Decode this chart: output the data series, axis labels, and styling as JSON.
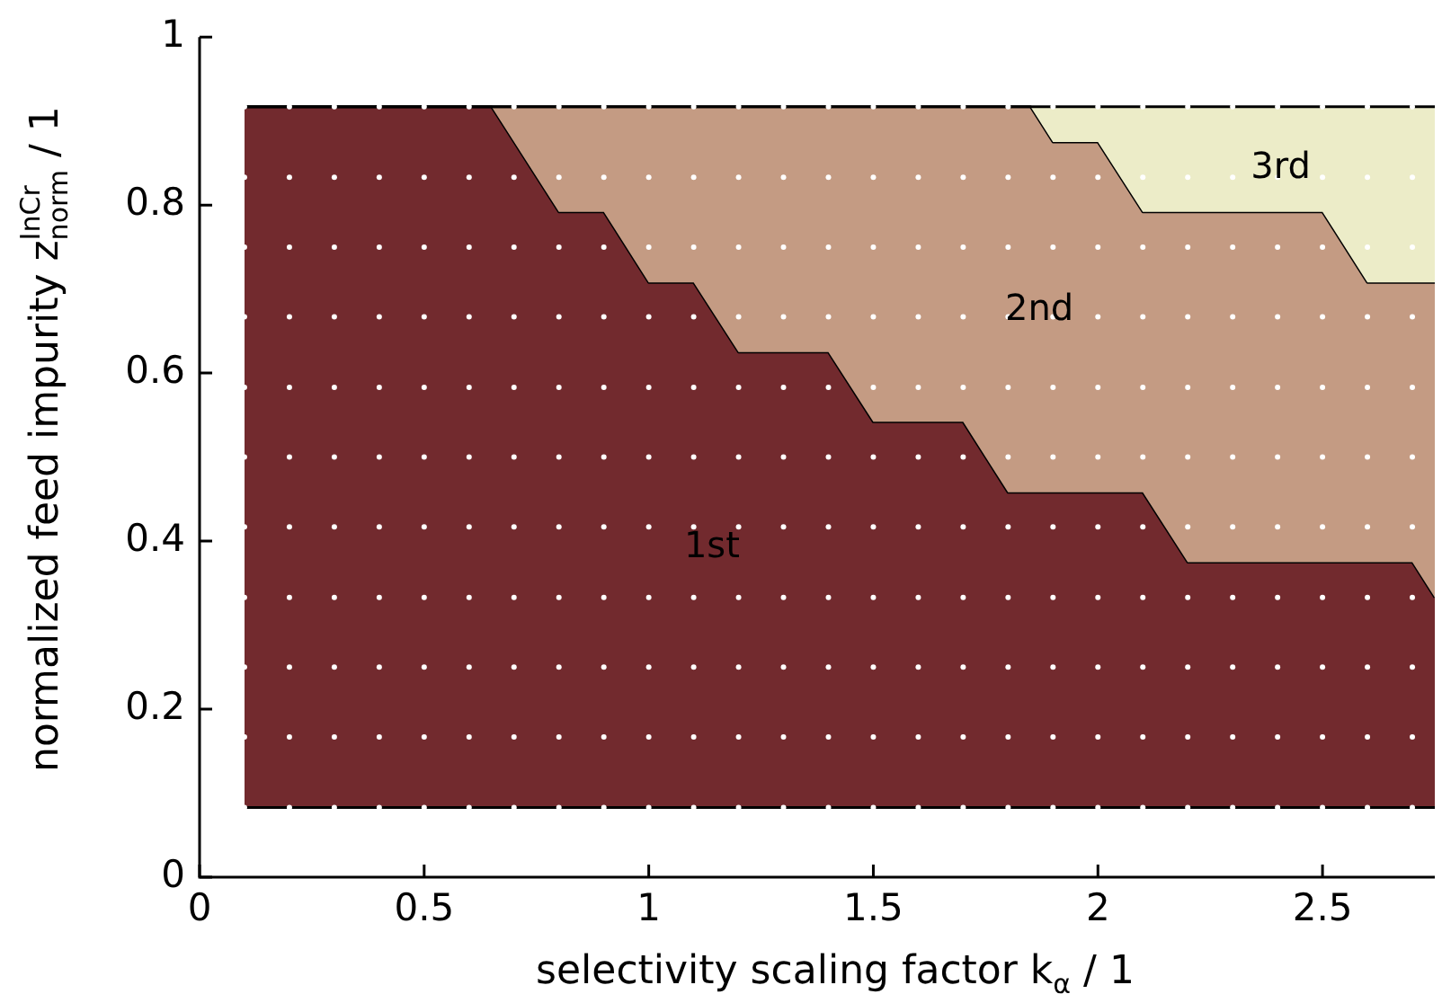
{
  "chart_data": {
    "type": "area",
    "xlabel": "selectivity scaling factor k$_{α}$ / 1",
    "ylabel": "normalized feed impurity z$_{norm}$$^{InCr}$ / 1",
    "xlim": [
      0,
      2.75
    ],
    "xticks": [
      0,
      0.5,
      1,
      1.5,
      2,
      2.5
    ],
    "ylim": [
      0,
      1
    ],
    "yticks": [
      0,
      0.2,
      0.4,
      0.6,
      0.8,
      1
    ],
    "grid": false,
    "legend": false,
    "annotations": [
      "1st",
      "2nd",
      "3rd"
    ],
    "x": [
      0.1,
      0.65,
      0.8,
      0.9,
      1.0,
      1.1,
      1.2,
      1.4,
      1.5,
      1.7,
      1.8,
      1.85,
      1.9,
      2.0,
      2.1,
      2.2,
      2.5,
      2.6,
      2.7,
      2.75
    ],
    "series": [
      {
        "type": "line",
        "color": "#000000",
        "values": [
          0.083,
          0.083,
          0.083,
          0.083,
          0.083,
          0.083,
          0.083,
          0.083,
          0.083,
          0.083,
          0.083,
          0.083,
          0.083,
          0.083,
          0.083,
          0.083,
          0.083,
          0.083,
          0.083,
          0.083
        ]
      },
      {
        "color": "#722a2e",
        "values": [
          0.917,
          0.917,
          0.792,
          0.792,
          0.708,
          0.708,
          0.625,
          0.625,
          0.542,
          0.542,
          0.458,
          0.458,
          0.458,
          0.458,
          0.458,
          0.375,
          0.375,
          0.375,
          0.375,
          0.333
        ]
      },
      {
        "color": "#c49b83",
        "values": [
          0.917,
          0.917,
          0.917,
          0.917,
          0.917,
          0.917,
          0.917,
          0.917,
          0.917,
          0.917,
          0.917,
          0.917,
          0.875,
          0.875,
          0.792,
          0.792,
          0.792,
          0.708,
          0.708,
          0.708
        ]
      },
      {
        "color": "#ececc8",
        "values": [
          0.917,
          0.917,
          0.917,
          0.917,
          0.917,
          0.917,
          0.917,
          0.917,
          0.917,
          0.917,
          0.917,
          0.917,
          0.917,
          0.917,
          0.917,
          0.917,
          0.917,
          0.917,
          0.917,
          0.917
        ]
      },
      {
        "type": "scatter",
        "color": "#ffffff",
        "marker": "circle",
        "x": [
          0.1,
          0.2,
          0.3,
          0.4,
          0.5,
          0.6,
          0.7,
          0.8,
          0.9,
          1.0,
          1.1,
          1.2,
          1.3,
          1.4,
          1.5,
          1.6,
          1.7,
          1.8,
          1.9,
          2.0,
          2.1,
          2.2,
          2.3,
          2.4,
          2.5,
          2.6,
          2.7,
          0.1,
          0.2,
          0.3,
          0.4,
          0.5,
          0.6,
          0.7,
          0.8,
          0.9,
          1.0,
          1.1,
          1.2,
          1.3,
          1.4,
          1.5,
          1.6,
          1.7,
          1.8,
          1.9,
          2.0,
          2.1,
          2.2,
          2.3,
          2.4,
          2.5,
          2.6,
          2.7,
          0.1,
          0.2,
          0.3,
          0.4,
          0.5,
          0.6,
          0.7,
          0.8,
          0.9,
          1.0,
          1.1,
          1.2,
          1.3,
          1.4,
          1.5,
          1.6,
          1.7,
          1.8,
          1.9,
          2.0,
          2.1,
          2.2,
          2.3,
          2.4,
          2.5,
          2.6,
          2.7,
          0.1,
          0.2,
          0.3,
          0.4,
          0.5,
          0.6,
          0.7,
          0.8,
          0.9,
          1.0,
          1.1,
          1.2,
          1.3,
          1.4,
          1.5,
          1.6,
          1.7,
          1.8,
          1.9,
          2.0,
          2.1,
          2.2,
          2.3,
          2.4,
          2.5,
          2.6,
          2.7,
          0.1,
          0.2,
          0.3,
          0.4,
          0.5,
          0.6,
          0.7,
          0.8,
          0.9,
          1.0,
          1.1,
          1.2,
          1.3,
          1.4,
          1.5,
          1.6,
          1.7,
          1.8,
          1.9,
          2.0,
          2.1,
          2.2,
          2.3,
          2.4,
          2.5,
          2.6,
          2.7,
          0.1,
          0.2,
          0.3,
          0.4,
          0.5,
          0.6,
          0.7,
          0.8,
          0.9,
          1.0,
          1.1,
          1.2,
          1.3,
          1.4,
          1.5,
          1.6,
          1.7,
          1.8,
          1.9,
          2.0,
          2.1,
          2.2,
          2.3,
          2.4,
          2.5,
          2.6,
          2.7,
          0.1,
          0.2,
          0.3,
          0.4,
          0.5,
          0.6,
          0.7,
          0.8,
          0.9,
          1.0,
          1.1,
          1.2,
          1.3,
          1.4,
          1.5,
          1.6,
          1.7,
          1.8,
          1.9,
          2.0,
          2.1,
          2.2,
          2.3,
          2.4,
          2.5,
          2.6,
          2.7,
          0.1,
          0.2,
          0.3,
          0.4,
          0.5,
          0.6,
          0.7,
          0.8,
          0.9,
          1.0,
          1.1,
          1.2,
          1.3,
          1.4,
          1.5,
          1.6,
          1.7,
          1.8,
          1.9,
          2.0,
          2.1,
          2.2,
          2.3,
          2.4,
          2.5,
          2.6,
          2.7,
          0.1,
          0.2,
          0.3,
          0.4,
          0.5,
          0.6,
          0.7,
          0.8,
          0.9,
          1.0,
          1.1,
          1.2,
          1.3,
          1.4,
          1.5,
          1.6,
          1.7,
          1.8,
          1.9,
          2.0,
          2.1,
          2.2,
          2.3,
          2.4,
          2.5,
          2.6,
          2.7,
          0.1,
          0.2,
          0.3,
          0.4,
          0.5,
          0.6,
          0.7,
          0.8,
          0.9,
          1.0,
          1.1,
          1.2,
          1.3,
          1.4,
          1.5,
          1.6,
          1.7,
          1.8,
          1.9,
          2.0,
          2.1,
          2.2,
          2.3,
          2.4,
          2.5,
          2.6,
          2.7,
          0.1,
          0.2,
          0.3,
          0.4,
          0.5,
          0.6,
          0.7,
          0.8,
          0.9,
          1.0,
          1.1,
          1.2,
          1.3,
          1.4,
          1.5,
          1.6,
          1.7,
          1.8,
          1.9,
          2.0,
          2.1,
          2.2,
          2.3,
          2.4,
          2.5,
          2.6,
          2.7
        ],
        "values": [
          0.083,
          0.083,
          0.083,
          0.083,
          0.083,
          0.083,
          0.083,
          0.083,
          0.083,
          0.083,
          0.083,
          0.083,
          0.083,
          0.083,
          0.083,
          0.083,
          0.083,
          0.083,
          0.083,
          0.083,
          0.083,
          0.083,
          0.083,
          0.083,
          0.083,
          0.083,
          0.083,
          0.167,
          0.167,
          0.167,
          0.167,
          0.167,
          0.167,
          0.167,
          0.167,
          0.167,
          0.167,
          0.167,
          0.167,
          0.167,
          0.167,
          0.167,
          0.167,
          0.167,
          0.167,
          0.167,
          0.167,
          0.167,
          0.167,
          0.167,
          0.167,
          0.167,
          0.167,
          0.167,
          0.25,
          0.25,
          0.25,
          0.25,
          0.25,
          0.25,
          0.25,
          0.25,
          0.25,
          0.25,
          0.25,
          0.25,
          0.25,
          0.25,
          0.25,
          0.25,
          0.25,
          0.25,
          0.25,
          0.25,
          0.25,
          0.25,
          0.25,
          0.25,
          0.25,
          0.25,
          0.25,
          0.333,
          0.333,
          0.333,
          0.333,
          0.333,
          0.333,
          0.333,
          0.333,
          0.333,
          0.333,
          0.333,
          0.333,
          0.333,
          0.333,
          0.333,
          0.333,
          0.333,
          0.333,
          0.333,
          0.333,
          0.333,
          0.333,
          0.333,
          0.333,
          0.333,
          0.333,
          0.333,
          0.417,
          0.417,
          0.417,
          0.417,
          0.417,
          0.417,
          0.417,
          0.417,
          0.417,
          0.417,
          0.417,
          0.417,
          0.417,
          0.417,
          0.417,
          0.417,
          0.417,
          0.417,
          0.417,
          0.417,
          0.417,
          0.417,
          0.417,
          0.417,
          0.417,
          0.417,
          0.417,
          0.5,
          0.5,
          0.5,
          0.5,
          0.5,
          0.5,
          0.5,
          0.5,
          0.5,
          0.5,
          0.5,
          0.5,
          0.5,
          0.5,
          0.5,
          0.5,
          0.5,
          0.5,
          0.5,
          0.5,
          0.5,
          0.5,
          0.5,
          0.5,
          0.5,
          0.5,
          0.5,
          0.583,
          0.583,
          0.583,
          0.583,
          0.583,
          0.583,
          0.583,
          0.583,
          0.583,
          0.583,
          0.583,
          0.583,
          0.583,
          0.583,
          0.583,
          0.583,
          0.583,
          0.583,
          0.583,
          0.583,
          0.583,
          0.583,
          0.583,
          0.583,
          0.583,
          0.583,
          0.583,
          0.667,
          0.667,
          0.667,
          0.667,
          0.667,
          0.667,
          0.667,
          0.667,
          0.667,
          0.667,
          0.667,
          0.667,
          0.667,
          0.667,
          0.667,
          0.667,
          0.667,
          0.667,
          0.667,
          0.667,
          0.667,
          0.667,
          0.667,
          0.667,
          0.667,
          0.667,
          0.667,
          0.75,
          0.75,
          0.75,
          0.75,
          0.75,
          0.75,
          0.75,
          0.75,
          0.75,
          0.75,
          0.75,
          0.75,
          0.75,
          0.75,
          0.75,
          0.75,
          0.75,
          0.75,
          0.75,
          0.75,
          0.75,
          0.75,
          0.75,
          0.75,
          0.75,
          0.75,
          0.75,
          0.833,
          0.833,
          0.833,
          0.833,
          0.833,
          0.833,
          0.833,
          0.833,
          0.833,
          0.833,
          0.833,
          0.833,
          0.833,
          0.833,
          0.833,
          0.833,
          0.833,
          0.833,
          0.833,
          0.833,
          0.833,
          0.833,
          0.833,
          0.833,
          0.833,
          0.833,
          0.833,
          0.917,
          0.917,
          0.917,
          0.917,
          0.917,
          0.917,
          0.917,
          0.917,
          0.917,
          0.917,
          0.917,
          0.917,
          0.917,
          0.917,
          0.917,
          0.917,
          0.917,
          0.917,
          0.917,
          0.917,
          0.917,
          0.917,
          0.917,
          0.917,
          0.917,
          0.917,
          0.917
        ]
      }
    ]
  }
}
